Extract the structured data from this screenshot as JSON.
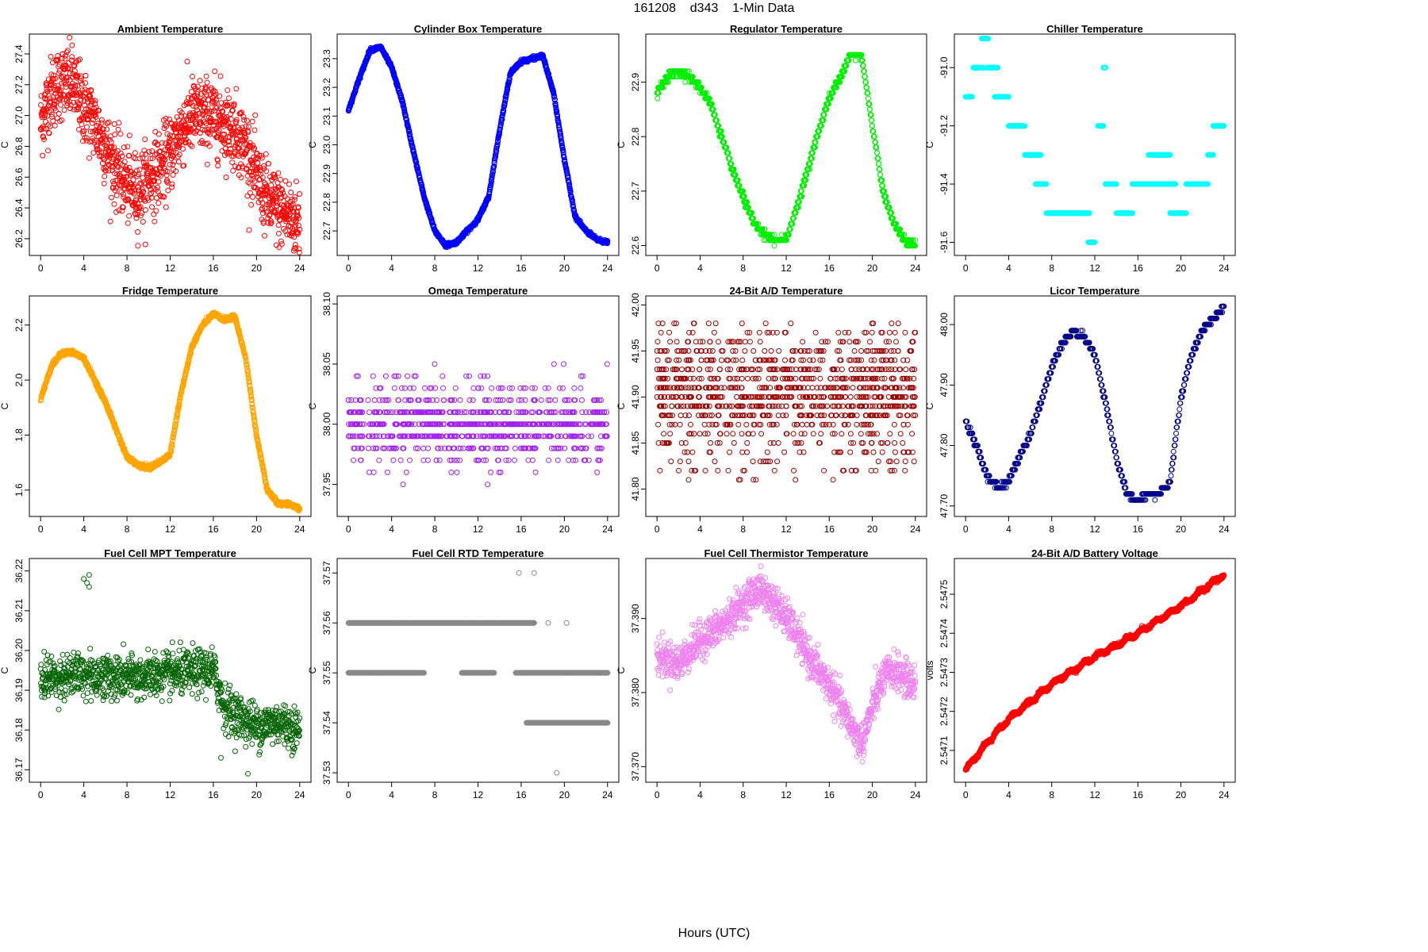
{
  "figure": {
    "title": "161208    d343    1-Min Data",
    "xlabel": "Hours (UTC)"
  },
  "chart_data": [
    {
      "type": "scatter",
      "title": "Ambient Temperature",
      "ylabel": "C",
      "xlabel": "",
      "xlim": [
        0,
        24
      ],
      "xticks": [
        0,
        4,
        8,
        12,
        16,
        20,
        24
      ],
      "ylim": [
        26.12,
        27.5
      ],
      "yticks": [
        "26.2",
        "26.4",
        "26.6",
        "26.8",
        "27.0",
        "27.2",
        "27.4"
      ],
      "color": "#ff0000",
      "noise": 0.12,
      "trend": [
        [
          0,
          26.95
        ],
        [
          1,
          27.15
        ],
        [
          2,
          27.22
        ],
        [
          3,
          27.2
        ],
        [
          4,
          27.05
        ],
        [
          5,
          26.95
        ],
        [
          6,
          26.8
        ],
        [
          7,
          26.65
        ],
        [
          8,
          26.55
        ],
        [
          9,
          26.5
        ],
        [
          10,
          26.6
        ],
        [
          11,
          26.65
        ],
        [
          12,
          26.75
        ],
        [
          13,
          26.9
        ],
        [
          14,
          27.0
        ],
        [
          15,
          27.0
        ],
        [
          16,
          27.0
        ],
        [
          17,
          26.95
        ],
        [
          18,
          26.9
        ],
        [
          19,
          26.8
        ],
        [
          20,
          26.6
        ],
        [
          21,
          26.45
        ],
        [
          22,
          26.4
        ],
        [
          23,
          26.35
        ],
        [
          24,
          26.3
        ]
      ],
      "n": 1300
    },
    {
      "type": "scatter",
      "title": "Cylinder Box Temperature",
      "ylabel": "C",
      "xlabel": "",
      "xlim": [
        0,
        24
      ],
      "xticks": [
        0,
        4,
        8,
        12,
        16,
        20,
        24
      ],
      "ylim": [
        22.63,
        23.37
      ],
      "yticks": [
        "22.7",
        "22.8",
        "22.9",
        "23.0",
        "23.1",
        "23.2",
        "23.3"
      ],
      "color": "#0000ff",
      "noise": 0.003,
      "trend": [
        [
          0,
          23.12
        ],
        [
          1,
          23.23
        ],
        [
          2,
          23.33
        ],
        [
          3,
          23.34
        ],
        [
          4,
          23.27
        ],
        [
          5,
          23.15
        ],
        [
          6,
          22.98
        ],
        [
          7,
          22.82
        ],
        [
          8,
          22.7
        ],
        [
          9,
          22.65
        ],
        [
          10,
          22.66
        ],
        [
          11,
          22.7
        ],
        [
          12,
          22.74
        ],
        [
          13,
          22.82
        ],
        [
          14,
          23.05
        ],
        [
          15,
          23.25
        ],
        [
          16,
          23.29
        ],
        [
          17,
          23.3
        ],
        [
          18,
          23.31
        ],
        [
          19,
          23.18
        ],
        [
          20,
          22.95
        ],
        [
          21,
          22.75
        ],
        [
          22,
          22.7
        ],
        [
          23,
          22.67
        ],
        [
          24,
          22.66
        ]
      ],
      "n": 1440
    },
    {
      "type": "scatter",
      "title": "Regulator Temperature",
      "ylabel": "C",
      "xlabel": "",
      "xlim": [
        0,
        24
      ],
      "xticks": [
        0,
        4,
        8,
        12,
        16,
        20,
        24
      ],
      "ylim": [
        22.59,
        22.98
      ],
      "yticks": [
        "22.6",
        "22.7",
        "22.8",
        "22.9"
      ],
      "color": "#00ee00",
      "noise": 0.003,
      "quant": 0.01,
      "trend": [
        [
          0,
          22.88
        ],
        [
          1,
          22.91
        ],
        [
          2,
          22.92
        ],
        [
          3,
          22.91
        ],
        [
          4,
          22.89
        ],
        [
          5,
          22.86
        ],
        [
          6,
          22.8
        ],
        [
          7,
          22.74
        ],
        [
          8,
          22.69
        ],
        [
          9,
          22.64
        ],
        [
          10,
          22.62
        ],
        [
          11,
          22.61
        ],
        [
          12,
          22.61
        ],
        [
          13,
          22.67
        ],
        [
          14,
          22.74
        ],
        [
          15,
          22.81
        ],
        [
          16,
          22.87
        ],
        [
          17,
          22.91
        ],
        [
          18,
          22.95
        ],
        [
          19,
          22.95
        ],
        [
          20,
          22.82
        ],
        [
          21,
          22.7
        ],
        [
          22,
          22.64
        ],
        [
          23,
          22.61
        ],
        [
          24,
          22.6
        ]
      ],
      "n": 900
    },
    {
      "type": "scatter",
      "title": "Chiller Temperature",
      "ylabel": "C",
      "xlabel": "",
      "xlim": [
        0,
        24
      ],
      "xticks": [
        0,
        4,
        8,
        12,
        16,
        20,
        24
      ],
      "ylim": [
        -91.63,
        -90.9
      ],
      "yticks": [
        "-91.6",
        "-91.4",
        "-91.2",
        "-91.0"
      ],
      "color": "#00ffff",
      "segments": [
        [
          0,
          0.6,
          -91.1
        ],
        [
          0.7,
          1.6,
          -91.0
        ],
        [
          1.5,
          2.1,
          -90.9
        ],
        [
          2.0,
          3.0,
          -91.0
        ],
        [
          2.7,
          4.0,
          -91.1
        ],
        [
          4.0,
          5.5,
          -91.2
        ],
        [
          5.5,
          7.0,
          -91.3
        ],
        [
          6.5,
          7.5,
          -91.4
        ],
        [
          7.5,
          11.5,
          -91.5
        ],
        [
          11.4,
          12.0,
          -91.6
        ],
        [
          12.3,
          12.8,
          -91.2
        ],
        [
          12.8,
          13.0,
          -91.0
        ],
        [
          13.0,
          14.0,
          -91.4
        ],
        [
          14.0,
          15.5,
          -91.5
        ],
        [
          15.5,
          19.5,
          -91.4
        ],
        [
          17.0,
          19.0,
          -91.3
        ],
        [
          19.0,
          20.5,
          -91.5
        ],
        [
          20.5,
          22.5,
          -91.4
        ],
        [
          22.5,
          23.0,
          -91.3
        ],
        [
          23.0,
          24.0,
          -91.2
        ]
      ]
    },
    {
      "type": "scatter",
      "title": "Fridge Temperature",
      "ylabel": "C",
      "xlabel": "",
      "xlim": [
        0,
        24
      ],
      "xticks": [
        0,
        4,
        8,
        12,
        16,
        20,
        24
      ],
      "ylim": [
        1.52,
        2.29
      ],
      "yticks": [
        "1.6",
        "1.8",
        "2.0",
        "2.2"
      ],
      "color": "#ffa500",
      "noise": 0.004,
      "trend": [
        [
          0,
          1.93
        ],
        [
          1,
          2.05
        ],
        [
          2,
          2.1
        ],
        [
          3,
          2.1
        ],
        [
          4,
          2.08
        ],
        [
          5,
          2.0
        ],
        [
          6,
          1.92
        ],
        [
          7,
          1.82
        ],
        [
          8,
          1.72
        ],
        [
          9,
          1.69
        ],
        [
          10,
          1.68
        ],
        [
          11,
          1.7
        ],
        [
          12,
          1.73
        ],
        [
          13,
          1.95
        ],
        [
          14,
          2.12
        ],
        [
          15,
          2.2
        ],
        [
          16,
          2.24
        ],
        [
          17,
          2.22
        ],
        [
          18,
          2.23
        ],
        [
          19,
          2.08
        ],
        [
          20,
          1.8
        ],
        [
          21,
          1.6
        ],
        [
          22,
          1.55
        ],
        [
          23,
          1.55
        ],
        [
          24,
          1.53
        ]
      ],
      "n": 1440
    },
    {
      "type": "scatter",
      "title": "Omega Temperature",
      "ylabel": "C",
      "xlabel": "",
      "xlim": [
        0,
        24
      ],
      "xticks": [
        0,
        4,
        8,
        12,
        16,
        20,
        24
      ],
      "ylim": [
        37.927,
        38.103
      ],
      "yticks": [
        "37.95",
        "38.00",
        "38.05",
        "38.10"
      ],
      "color": "#a020f0",
      "levels": [
        38.0,
        38.01,
        37.99,
        38.02,
        37.98,
        38.03,
        37.97,
        38.04,
        37.96,
        38.05,
        37.95
      ],
      "weights": [
        40,
        28,
        28,
        12,
        12,
        5,
        5,
        2,
        2,
        1,
        1
      ],
      "n": 900
    },
    {
      "type": "scatter",
      "title": "24-Bit A/D Temperature",
      "ylabel": "C",
      "xlabel": "",
      "xlim": [
        0,
        24
      ],
      "xticks": [
        0,
        4,
        8,
        12,
        16,
        20,
        24
      ],
      "ylim": [
        41.775,
        42.005
      ],
      "yticks": [
        "41.80",
        "41.85",
        "41.90",
        "41.95",
        "42.00"
      ],
      "color": "#990000",
      "levels": [
        41.9,
        41.91,
        41.89,
        41.92,
        41.88,
        41.93,
        41.87,
        41.94,
        41.86,
        41.95,
        41.85,
        41.96,
        41.84,
        41.97,
        41.83,
        41.98,
        41.82,
        41.81
      ],
      "weights": [
        20,
        20,
        18,
        18,
        14,
        14,
        10,
        10,
        8,
        8,
        6,
        6,
        4,
        4,
        3,
        3,
        2,
        1
      ],
      "n": 1100
    },
    {
      "type": "scatter",
      "title": "Licor Temperature",
      "ylabel": "C",
      "xlabel": "",
      "xlim": [
        0,
        24
      ],
      "xticks": [
        0,
        4,
        8,
        12,
        16,
        20,
        24
      ],
      "ylim": [
        47.69,
        48.04
      ],
      "yticks": [
        "47.70",
        "47.80",
        "47.90",
        "48.00"
      ],
      "color": "#00008b",
      "noise": 0.002,
      "quant": 0.01,
      "trend": [
        [
          0,
          47.84
        ],
        [
          1,
          47.8
        ],
        [
          2,
          47.75
        ],
        [
          3,
          47.73
        ],
        [
          4,
          47.74
        ],
        [
          5,
          47.78
        ],
        [
          6,
          47.82
        ],
        [
          7,
          47.87
        ],
        [
          8,
          47.93
        ],
        [
          9,
          47.97
        ],
        [
          10,
          47.99
        ],
        [
          11,
          47.98
        ],
        [
          12,
          47.95
        ],
        [
          13,
          47.87
        ],
        [
          14,
          47.78
        ],
        [
          15,
          47.72
        ],
        [
          16,
          47.71
        ],
        [
          17,
          47.72
        ],
        [
          18,
          47.72
        ],
        [
          19,
          47.74
        ],
        [
          20,
          47.88
        ],
        [
          21,
          47.95
        ],
        [
          22,
          47.99
        ],
        [
          23,
          48.01
        ],
        [
          24,
          48.03
        ]
      ],
      "n": 600
    },
    {
      "type": "scatter",
      "title": "Fuel Cell MPT Temperature",
      "ylabel": "C",
      "xlabel": "",
      "xlim": [
        0,
        24
      ],
      "xticks": [
        0,
        4,
        8,
        12,
        16,
        20,
        24
      ],
      "ylim": [
        36.168,
        36.222
      ],
      "yticks": [
        "36.17",
        "36.18",
        "36.19",
        "36.20",
        "36.21",
        "36.22"
      ],
      "color": "#006400",
      "noise": 0.0028,
      "trend": [
        [
          0,
          36.193
        ],
        [
          4,
          36.194
        ],
        [
          8,
          36.193
        ],
        [
          12,
          36.194
        ],
        [
          16,
          36.195
        ],
        [
          17,
          36.186
        ],
        [
          18,
          36.184
        ],
        [
          20,
          36.181
        ],
        [
          22,
          36.182
        ],
        [
          24,
          36.18
        ]
      ],
      "n": 1100,
      "extra": [
        [
          4.0,
          36.218
        ],
        [
          4.5,
          36.219
        ],
        [
          4.5,
          36.216
        ],
        [
          4.3,
          36.217
        ],
        [
          19.2,
          36.169
        ],
        [
          16.7,
          36.173
        ]
      ]
    },
    {
      "type": "scatter",
      "title": "Fuel Cell RTD Temperature",
      "ylabel": "C",
      "xlabel": "",
      "xlim": [
        0,
        24
      ],
      "xticks": [
        0,
        4,
        8,
        12,
        16,
        20,
        24
      ],
      "ylim": [
        37.529,
        37.572
      ],
      "yticks": [
        "37.53",
        "37.54",
        "37.55",
        "37.56",
        "37.57"
      ],
      "color": "#888888",
      "segments": [
        [
          0,
          17.2,
          37.56
        ],
        [
          0,
          7.0,
          37.55
        ],
        [
          10.5,
          13.5,
          37.55
        ],
        [
          15.5,
          24,
          37.55
        ],
        [
          16.5,
          24,
          37.54
        ]
      ],
      "extra": [
        [
          15.8,
          37.57
        ],
        [
          17.2,
          37.57
        ],
        [
          19.3,
          37.53
        ],
        [
          18.5,
          37.56
        ],
        [
          20.2,
          37.56
        ]
      ]
    },
    {
      "type": "scatter",
      "title": "Fuel Cell Thermistor Temperature",
      "ylabel": "C",
      "xlabel": "",
      "xlim": [
        0,
        24
      ],
      "xticks": [
        0,
        4,
        8,
        12,
        16,
        20,
        24
      ],
      "ylim": [
        37.3685,
        37.3975
      ],
      "yticks": [
        "37.370",
        "37.380",
        "37.390"
      ],
      "color": "#ee82ee",
      "noise": 0.0012,
      "trend": [
        [
          0,
          37.385
        ],
        [
          2,
          37.384
        ],
        [
          4,
          37.387
        ],
        [
          6,
          37.389
        ],
        [
          8,
          37.392
        ],
        [
          9.5,
          37.394
        ],
        [
          11,
          37.392
        ],
        [
          12.5,
          37.389
        ],
        [
          14,
          37.385
        ],
        [
          16,
          37.381
        ],
        [
          17.5,
          37.377
        ],
        [
          19,
          37.373
        ],
        [
          20,
          37.378
        ],
        [
          21,
          37.382
        ],
        [
          22,
          37.383
        ],
        [
          23,
          37.382
        ],
        [
          24,
          37.381
        ]
      ],
      "n": 1200
    },
    {
      "type": "scatter",
      "title": "24-Bit A/D Battery Voltage",
      "ylabel": "volts",
      "xlabel": "",
      "xlim": [
        0,
        24
      ],
      "xticks": [
        0,
        4,
        8,
        12,
        16,
        20,
        24
      ],
      "ylim": [
        2.54703,
        2.54758
      ],
      "yticks": [
        "2.5471",
        "2.5472",
        "2.5473",
        "2.5474",
        "2.5475"
      ],
      "color": "#ff0000",
      "noise": 2.5e-06,
      "wave": 4e-06,
      "trend": [
        [
          0,
          2.54705
        ],
        [
          2,
          2.54712
        ],
        [
          4,
          2.54718
        ],
        [
          8,
          2.54727
        ],
        [
          12,
          2.54734
        ],
        [
          16,
          2.5474
        ],
        [
          20,
          2.54747
        ],
        [
          24,
          2.54755
        ]
      ],
      "n": 1440
    }
  ]
}
